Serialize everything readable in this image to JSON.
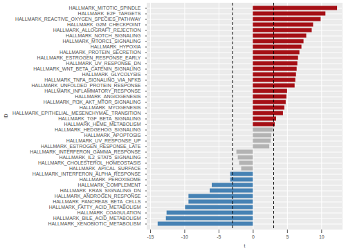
{
  "chart_data": {
    "type": "bar",
    "orientation": "horizontal",
    "x_label": "t",
    "y_label": "ID",
    "categories": [
      "HALLMARK_MITOTIC_SPINDLE",
      "HALLMARK_E2F_TARGETS",
      "HALLMARK_REACTIVE_OXYGEN_SPECIES_PATHWAY",
      "HALLMARK_G2M_CHECKPOINT",
      "HALLMARK_ALLOGRAFT_REJECTION",
      "HALLMARK_NOTCH_SIGNALING",
      "HALLMARK_MTORC1_SIGNALING",
      "HALLMARK_HYPOXIA",
      "HALLMARK_PROTEIN_SECRETION",
      "HALLMARK_ESTROGEN_RESPONSE_EARLY",
      "HALLMARK_UV_RESPONSE_DN",
      "HALLMARK_WNT_BETA_CATENIN_SIGNALING",
      "HALLMARK_GLYCOLYSIS",
      "HALLMARK_TNFA_SIGNALING_VIA_NFKB",
      "HALLMARK_UNFOLDED_PROTEIN_RESPONSE",
      "HALLMARK_INFLAMMATORY_RESPONSE",
      "HALLMARK_ANGIOGENESIS",
      "HALLMARK_PI3K_AKT_MTOR_SIGNALING",
      "HALLMARK_MYOGENESIS",
      "HALLMARK_EPITHELIAL_MESENCHYMAL_TRANSITION",
      "HALLMARK_TGF_BETA_SIGNALING",
      "HALLMARK_HEME_METABOLISM",
      "HALLMARK_HEDGEHOG_SIGNALING",
      "HALLMARK_APOPTOSIS",
      "HALLMARK_UV_RESPONSE_UP",
      "HALLMARK_ESTROGEN_RESPONSE_LATE",
      "HALLMARK_INTERFERON_GAMMA_RESPONSE",
      "HALLMARK_IL2_STAT5_SIGNALING",
      "HALLMARK_CHOLESTEROL_HOMEOSTASIS",
      "HALLMARK_APICAL_SURFACE",
      "HALLMARK_INTERFERON_ALPHA_RESPONSE",
      "HALLMARK_PEROXISOME",
      "HALLMARK_COMPLEMENT",
      "HALLMARK_KRAS_SIGNALING_DN",
      "HALLMARK_ANDROGEN_RESPONSE",
      "HALLMARK_PANCREAS_BETA_CELLS",
      "HALLMARK_FATTY_ACID_METABOLISM",
      "HALLMARK_COAGULATION",
      "HALLMARK_BILE_ACID_METABOLISM",
      "HALLMARK_XENOBIOTIC_METABOLISM"
    ],
    "values": [
      12.3,
      10.6,
      9.9,
      8.8,
      8.6,
      7.8,
      7.4,
      7.1,
      6.8,
      6.6,
      6.5,
      6.4,
      6.3,
      6.2,
      6.1,
      5.0,
      4.9,
      4.8,
      4.6,
      4.4,
      3.4,
      3.2,
      2.9,
      2.7,
      2.6,
      2.4,
      -2.4,
      -2.2,
      -2.0,
      -1.7,
      -3.3,
      -3.3,
      -6.0,
      -6.3,
      -9.4,
      -9.4,
      -9.9,
      -12.6,
      -12.7,
      -13.9
    ],
    "colors": [
      "#a50f15",
      "#a50f15",
      "#a50f15",
      "#a50f15",
      "#a50f15",
      "#a50f15",
      "#a50f15",
      "#a50f15",
      "#a50f15",
      "#a50f15",
      "#a50f15",
      "#a50f15",
      "#a50f15",
      "#a50f15",
      "#a50f15",
      "#a50f15",
      "#a50f15",
      "#a50f15",
      "#a50f15",
      "#a50f15",
      "#a50f15",
      "#a50f15",
      "#b3b3b3",
      "#b3b3b3",
      "#b3b3b3",
      "#b3b3b3",
      "#b3b3b3",
      "#b3b3b3",
      "#b3b3b3",
      "#b3b3b3",
      "#4682b4",
      "#4682b4",
      "#4682b4",
      "#4682b4",
      "#4682b4",
      "#4682b4",
      "#4682b4",
      "#4682b4",
      "#4682b4",
      "#4682b4"
    ],
    "thresholds": [
      -3,
      3
    ],
    "xlim": [
      -15.5,
      13
    ],
    "xticks": [
      -15,
      -10,
      -5,
      0,
      5,
      10
    ],
    "grid": true
  }
}
